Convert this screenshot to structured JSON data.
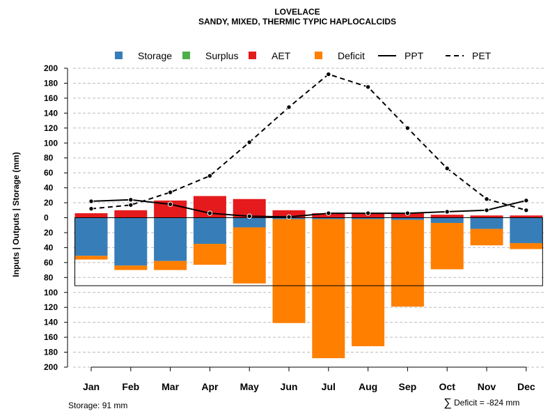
{
  "chart_data": {
    "type": "bar",
    "title": "LOVELACE",
    "subtitle": "SANDY, MIXED, THERMIC TYPIC HAPLOCALCIDS",
    "ylabel": "Inputs | Outputs | Storage    (mm)",
    "ylim": [
      -200,
      200
    ],
    "yticks": [
      200,
      180,
      160,
      140,
      120,
      100,
      80,
      60,
      40,
      20,
      0,
      -20,
      -40,
      -60,
      -80,
      -100,
      -120,
      -140,
      -160,
      -180,
      -200
    ],
    "ytick_labels": [
      "200",
      "180",
      "160",
      "140",
      "120",
      "100",
      "80",
      "60",
      "40",
      "20",
      "0",
      "20",
      "40",
      "60",
      "80",
      "100",
      "120",
      "140",
      "160",
      "180",
      "200"
    ],
    "categories": [
      "Jan",
      "Feb",
      "Mar",
      "Apr",
      "May",
      "Jun",
      "Jul",
      "Aug",
      "Sep",
      "Oct",
      "Nov",
      "Dec"
    ],
    "legend": [
      {
        "name": "Storage",
        "kind": "square",
        "color": "#377eb8"
      },
      {
        "name": "Surplus",
        "kind": "square",
        "color": "#4daf4a"
      },
      {
        "name": "AET",
        "kind": "square",
        "color": "#e41a1c"
      },
      {
        "name": "Deficit",
        "kind": "square",
        "color": "#ff7f00"
      },
      {
        "name": "PPT",
        "kind": "solid-line",
        "color": "#000000"
      },
      {
        "name": "PET",
        "kind": "dashed-line",
        "color": "#000000"
      }
    ],
    "series": [
      {
        "name": "AET",
        "color": "#e41a1c",
        "values": [
          6,
          10,
          23,
          29,
          25,
          10,
          6,
          6,
          6,
          4,
          3,
          3
        ]
      },
      {
        "name": "Surplus",
        "color": "#4daf4a",
        "values": [
          0,
          0,
          0,
          0,
          0,
          0,
          0,
          0,
          0,
          0,
          0,
          0
        ]
      },
      {
        "name": "Storage",
        "color": "#377eb8",
        "values": [
          -51,
          -64,
          -58,
          -35,
          -13,
          -2,
          -2,
          -2,
          -3,
          -7,
          -15,
          -34
        ]
      },
      {
        "name": "Deficit",
        "color": "#ff7f00",
        "values": [
          -5,
          -6,
          -12,
          -28,
          -75,
          -139,
          -186,
          -170,
          -116,
          -62,
          -22,
          -8
        ]
      },
      {
        "name": "PPT",
        "color": "#000000",
        "values": [
          22,
          24,
          18,
          6,
          2,
          1,
          6,
          6,
          6,
          8,
          10,
          23
        ]
      },
      {
        "name": "PET",
        "color": "#000000",
        "values": [
          12,
          17,
          34,
          56,
          101,
          148,
          192,
          175,
          120,
          66,
          25,
          10
        ]
      }
    ],
    "storage_capacity_mm": 91,
    "storage_text": "Storage: 91 mm",
    "deficit_symbol": "∑",
    "deficit_text": "Deficit = -824 mm",
    "grid": true
  }
}
